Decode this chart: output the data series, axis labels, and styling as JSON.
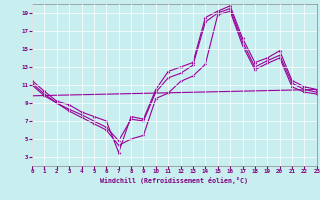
{
  "xlabel": "Windchill (Refroidissement éolien,°C)",
  "xlim": [
    0,
    23
  ],
  "ylim": [
    2,
    20
  ],
  "xticks": [
    0,
    1,
    2,
    3,
    4,
    5,
    6,
    7,
    8,
    9,
    10,
    11,
    12,
    13,
    14,
    15,
    16,
    17,
    18,
    19,
    20,
    21,
    22,
    23
  ],
  "yticks": [
    3,
    5,
    7,
    9,
    11,
    13,
    15,
    17,
    19
  ],
  "bg_color": "#c8eef0",
  "line_color": "#990099",
  "grid_color": "#ffffff",
  "line1_x": [
    0,
    1,
    2,
    3,
    4,
    5,
    6,
    7,
    8,
    9,
    10,
    11,
    12,
    13,
    14,
    15,
    16,
    17,
    18,
    19,
    20,
    21,
    22,
    23
  ],
  "line1_y": [
    11.5,
    10.3,
    9.2,
    8.8,
    8.0,
    7.5,
    7.0,
    3.5,
    7.5,
    7.2,
    10.5,
    12.5,
    13.0,
    13.5,
    18.5,
    19.2,
    19.8,
    16.2,
    13.5,
    14.0,
    14.8,
    11.5,
    10.8,
    10.5
  ],
  "line2_x": [
    0,
    1,
    2,
    3,
    4,
    5,
    6,
    7,
    8,
    9,
    10,
    11,
    12,
    13,
    14,
    15,
    16,
    17,
    18,
    19,
    20,
    21,
    22,
    23
  ],
  "line2_y": [
    11.2,
    10.0,
    9.0,
    8.3,
    7.7,
    7.0,
    6.3,
    4.8,
    7.2,
    7.0,
    10.2,
    11.8,
    12.3,
    13.2,
    18.0,
    19.0,
    19.5,
    15.8,
    13.0,
    13.7,
    14.3,
    11.2,
    10.5,
    10.2
  ],
  "line3_x": [
    0,
    1,
    2,
    3,
    4,
    5,
    6,
    7,
    8,
    9,
    10,
    11,
    12,
    13,
    14,
    15,
    16,
    17,
    18,
    19,
    20,
    21,
    22,
    23
  ],
  "line3_y": [
    11.0,
    9.8,
    9.0,
    8.1,
    7.4,
    6.7,
    6.0,
    4.3,
    5.0,
    5.4,
    9.5,
    10.1,
    11.4,
    12.0,
    13.3,
    18.8,
    19.2,
    15.4,
    12.7,
    13.4,
    14.0,
    10.8,
    10.2,
    10.0
  ],
  "line4_x": [
    0,
    23
  ],
  "line4_y": [
    9.8,
    10.5
  ]
}
